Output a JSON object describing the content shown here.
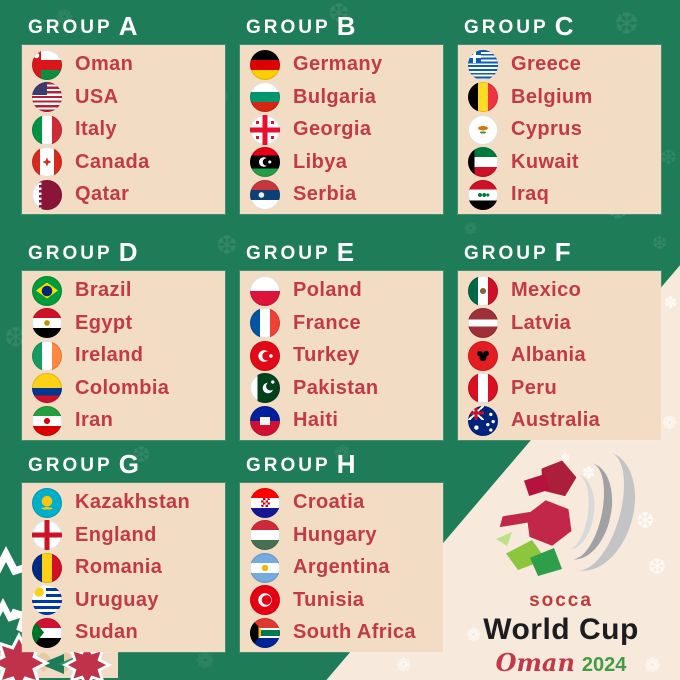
{
  "labels": {
    "group_word": "GROUP"
  },
  "groups": [
    {
      "letter": "A",
      "countries": [
        {
          "name": "Oman",
          "flag": "om"
        },
        {
          "name": "USA",
          "flag": "us"
        },
        {
          "name": "Italy",
          "flag": "it"
        },
        {
          "name": "Canada",
          "flag": "ca"
        },
        {
          "name": "Qatar",
          "flag": "qa"
        }
      ]
    },
    {
      "letter": "B",
      "countries": [
        {
          "name": "Germany",
          "flag": "de"
        },
        {
          "name": "Bulgaria",
          "flag": "bg"
        },
        {
          "name": "Georgia",
          "flag": "ge"
        },
        {
          "name": "Libya",
          "flag": "ly"
        },
        {
          "name": "Serbia",
          "flag": "rs"
        }
      ]
    },
    {
      "letter": "C",
      "countries": [
        {
          "name": "Greece",
          "flag": "gr"
        },
        {
          "name": "Belgium",
          "flag": "be"
        },
        {
          "name": "Cyprus",
          "flag": "cy"
        },
        {
          "name": "Kuwait",
          "flag": "kw"
        },
        {
          "name": "Iraq",
          "flag": "iq"
        }
      ]
    },
    {
      "letter": "D",
      "countries": [
        {
          "name": "Brazil",
          "flag": "br"
        },
        {
          "name": "Egypt",
          "flag": "eg"
        },
        {
          "name": "Ireland",
          "flag": "ie"
        },
        {
          "name": "Colombia",
          "flag": "co"
        },
        {
          "name": "Iran",
          "flag": "ir"
        }
      ]
    },
    {
      "letter": "E",
      "countries": [
        {
          "name": "Poland",
          "flag": "pl"
        },
        {
          "name": "France",
          "flag": "fr"
        },
        {
          "name": "Turkey",
          "flag": "tr"
        },
        {
          "name": "Pakistan",
          "flag": "pk"
        },
        {
          "name": "Haiti",
          "flag": "ht"
        }
      ]
    },
    {
      "letter": "F",
      "countries": [
        {
          "name": "Mexico",
          "flag": "mx"
        },
        {
          "name": "Latvia",
          "flag": "lv"
        },
        {
          "name": "Albania",
          "flag": "al"
        },
        {
          "name": "Peru",
          "flag": "pe"
        },
        {
          "name": "Australia",
          "flag": "au"
        }
      ]
    },
    {
      "letter": "G",
      "countries": [
        {
          "name": "Kazakhstan",
          "flag": "kz"
        },
        {
          "name": "England",
          "flag": "en"
        },
        {
          "name": "Romania",
          "flag": "ro"
        },
        {
          "name": "Uruguay",
          "flag": "uy"
        },
        {
          "name": "Sudan",
          "flag": "sd"
        }
      ]
    },
    {
      "letter": "H",
      "countries": [
        {
          "name": "Croatia",
          "flag": "hr"
        },
        {
          "name": "Hungary",
          "flag": "hu"
        },
        {
          "name": "Argentina",
          "flag": "ar"
        },
        {
          "name": "Tunisia",
          "flag": "tn"
        },
        {
          "name": "South Africa",
          "flag": "za"
        }
      ]
    }
  ],
  "logo": {
    "brand": "socca",
    "title": "World Cup",
    "host": "Oman",
    "year": "2024"
  },
  "colors": {
    "background_green": "#1f7c58",
    "panel_cream": "#f2dcc4",
    "wedge_cream": "#f7e9dc",
    "team_red": "#c23a49",
    "header_white": "#ffffff",
    "logo_black": "#1d1d1f",
    "logo_green": "#449b44",
    "logo_red": "#bf3a3a"
  }
}
